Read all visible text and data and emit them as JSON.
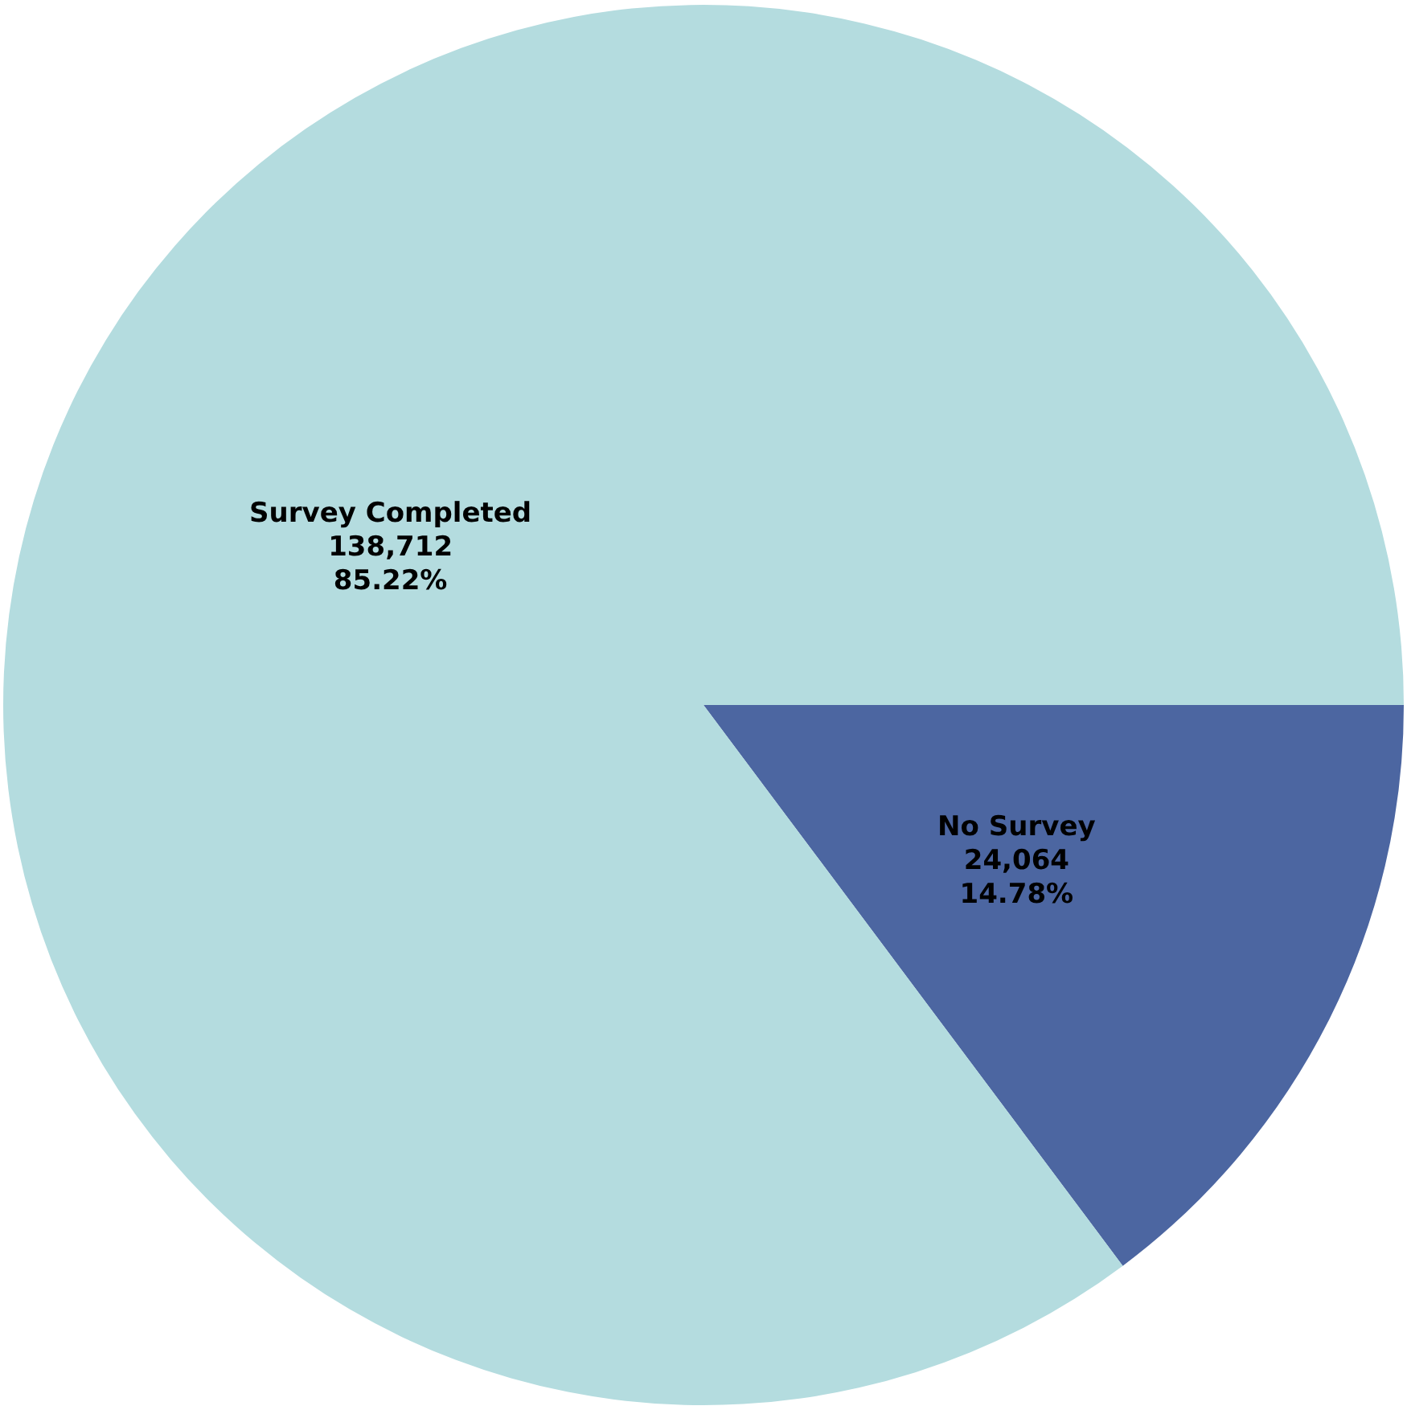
{
  "chart_data": {
    "type": "pie",
    "categories": [
      "No Survey",
      "Survey Completed"
    ],
    "values": [
      24064,
      138712
    ],
    "colors": [
      "#4c66a1",
      "#b4dcdf"
    ],
    "value_labels": [
      "24,064\n14.78%",
      "138,712\n85.22%"
    ],
    "legend": false
  }
}
